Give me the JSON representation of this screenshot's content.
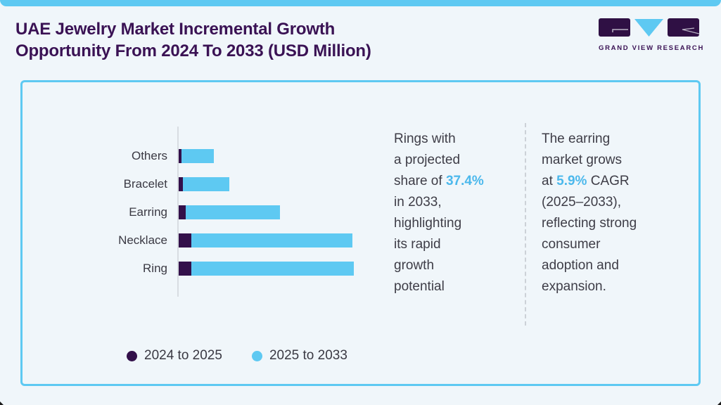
{
  "page": {
    "background": "#f0f6fa",
    "accent": "#5ec9f2"
  },
  "header": {
    "title_line1": "UAE Jewelry Market Incremental Growth",
    "title_line2": "Opportunity From 2024 To 2033 (USD Million)",
    "title_color": "#3a1254"
  },
  "logo": {
    "name": "Grand View Research logo",
    "wordmark": "GRAND VIEW RESEARCH",
    "block_color": "#2f1044",
    "triangle_color": "#5ec9f2"
  },
  "chart_data": {
    "type": "bar",
    "orientation": "horizontal",
    "stacked": true,
    "title": "UAE Jewelry Market Incremental Growth Opportunity From 2024 To 2033 (USD Million)",
    "categories": [
      "Others",
      "Bracelet",
      "Earring",
      "Necklace",
      "Ring"
    ],
    "series": [
      {
        "name": "2024 to 2025",
        "color": "#33104a",
        "values": [
          1.7,
          2.3,
          4.1,
          7.1,
          7.2
        ]
      },
      {
        "name": "2025 to 2033",
        "color": "#5ec9f2",
        "values": [
          18.4,
          26.7,
          53.9,
          92.0,
          92.8
        ]
      }
    ],
    "value_axis": {
      "label": "USD Million",
      "ticks_shown": false,
      "note": "No numeric axis shown; values estimated as percent of the longest stacked bar (Ring total = 100)"
    },
    "category_axis_line": true,
    "grid": false,
    "legend_position": "bottom"
  },
  "annotations": {
    "highlight_color": "#4bb8ec",
    "left_note": {
      "lines": [
        [
          {
            "text": "Rings with",
            "hl": false
          }
        ],
        [
          {
            "text": "a projected",
            "hl": false
          }
        ],
        [
          {
            "text": "share of ",
            "hl": false
          },
          {
            "text": "37.4%",
            "hl": true
          }
        ],
        [
          {
            "text": "in 2033,",
            "hl": false
          }
        ],
        [
          {
            "text": "highlighting",
            "hl": false
          }
        ],
        [
          {
            "text": "its rapid",
            "hl": false
          }
        ],
        [
          {
            "text": "growth",
            "hl": false
          }
        ],
        [
          {
            "text": "potential",
            "hl": false
          }
        ]
      ]
    },
    "right_note": {
      "lines": [
        [
          {
            "text": "The earring",
            "hl": false
          }
        ],
        [
          {
            "text": "market grows",
            "hl": false
          }
        ],
        [
          {
            "text": "at ",
            "hl": false
          },
          {
            "text": "5.9%",
            "hl": true
          },
          {
            "text": " CAGR",
            "hl": false
          }
        ],
        [
          {
            "text": "(2025–2033),",
            "hl": false
          }
        ],
        [
          {
            "text": "reflecting strong",
            "hl": false
          }
        ],
        [
          {
            "text": "consumer",
            "hl": false
          }
        ],
        [
          {
            "text": "adoption and",
            "hl": false
          }
        ],
        [
          {
            "text": "expansion.",
            "hl": false
          }
        ]
      ]
    }
  }
}
